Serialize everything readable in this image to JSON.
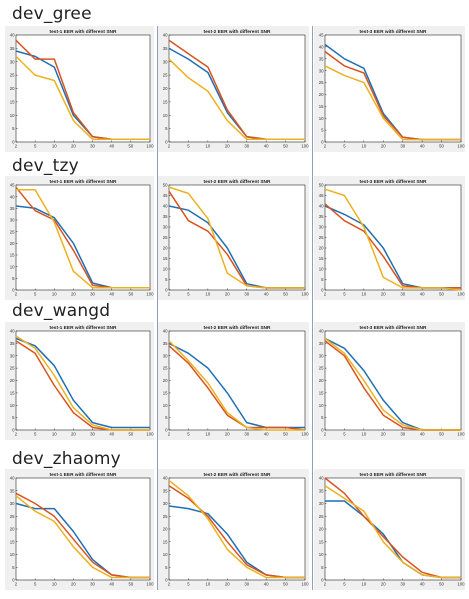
{
  "colors": {
    "series_blue": "#1f6fb5",
    "series_red": "#d9531e",
    "series_yellow": "#edb120",
    "panel_bg": "#f0f0f0",
    "divider": "#3b4f8a"
  },
  "sections": [
    {
      "title": "dev_gree"
    },
    {
      "title": "dev_tzy"
    },
    {
      "title": "dev_wangd"
    },
    {
      "title": "dev_zhaomy"
    }
  ],
  "chart_data": [
    {
      "type": "line",
      "section": "dev_gree",
      "title": "test-1 EER with different SNR",
      "categories": [
        "2",
        "5",
        "10",
        "20",
        "30",
        "40",
        "50",
        "100"
      ],
      "ylim": [
        0,
        40
      ],
      "yticks": [
        "0",
        "5",
        "10",
        "15",
        "20",
        "25",
        "30",
        "35",
        "40"
      ],
      "series": [
        {
          "color": "#1f6fb5",
          "values": [
            34,
            32,
            28,
            10,
            2,
            1,
            1,
            1
          ]
        },
        {
          "color": "#d9531e",
          "values": [
            38,
            31,
            31,
            11,
            2,
            1,
            1,
            1
          ]
        },
        {
          "color": "#edb120",
          "values": [
            32,
            25,
            23,
            8,
            1,
            1,
            1,
            1
          ]
        }
      ]
    },
    {
      "type": "line",
      "section": "dev_gree",
      "title": "test-2 EER with different SNR",
      "categories": [
        "2",
        "5",
        "10",
        "20",
        "30",
        "40",
        "50",
        "100"
      ],
      "ylim": [
        0,
        40
      ],
      "yticks": [
        "0",
        "5",
        "10",
        "15",
        "20",
        "25",
        "30",
        "35",
        "40"
      ],
      "series": [
        {
          "color": "#1f6fb5",
          "values": [
            35,
            31,
            26,
            11,
            2,
            1,
            1,
            1
          ]
        },
        {
          "color": "#d9531e",
          "values": [
            38,
            33,
            28,
            12,
            2,
            1,
            1,
            1
          ]
        },
        {
          "color": "#edb120",
          "values": [
            31,
            24,
            19,
            8,
            1,
            1,
            1,
            1
          ]
        }
      ]
    },
    {
      "type": "line",
      "section": "dev_gree",
      "title": "test-3 EER with different SNR",
      "categories": [
        "2",
        "5",
        "10",
        "20",
        "30",
        "40",
        "50",
        "100"
      ],
      "ylim": [
        0,
        45
      ],
      "yticks": [
        "0",
        "5",
        "10",
        "15",
        "20",
        "25",
        "30",
        "35",
        "40",
        "45"
      ],
      "series": [
        {
          "color": "#1f6fb5",
          "values": [
            41,
            35,
            31,
            12,
            2,
            1,
            1,
            1
          ]
        },
        {
          "color": "#d9531e",
          "values": [
            38,
            32,
            29,
            11,
            2,
            1,
            1,
            1
          ]
        },
        {
          "color": "#edb120",
          "values": [
            32,
            28,
            25,
            10,
            1,
            1,
            1,
            1
          ]
        }
      ]
    },
    {
      "type": "line",
      "section": "dev_tzy",
      "title": "test-1 EER with different SNR",
      "categories": [
        "2",
        "5",
        "10",
        "20",
        "30",
        "40",
        "50",
        "100"
      ],
      "ylim": [
        0,
        45
      ],
      "yticks": [
        "0",
        "5",
        "10",
        "15",
        "20",
        "25",
        "30",
        "35",
        "40",
        "45"
      ],
      "series": [
        {
          "color": "#1f6fb5",
          "values": [
            36,
            35,
            31,
            20,
            3,
            1,
            1,
            1
          ]
        },
        {
          "color": "#d9531e",
          "values": [
            44,
            34,
            30,
            17,
            2,
            1,
            1,
            1
          ]
        },
        {
          "color": "#edb120",
          "values": [
            43,
            43,
            29,
            8,
            1,
            1,
            1,
            1
          ]
        }
      ]
    },
    {
      "type": "line",
      "section": "dev_tzy",
      "title": "test-2 EER with different SNR",
      "categories": [
        "2",
        "5",
        "10",
        "20",
        "30",
        "40",
        "50",
        "100"
      ],
      "ylim": [
        0,
        50
      ],
      "yticks": [
        "0",
        "5",
        "10",
        "15",
        "20",
        "25",
        "30",
        "35",
        "40",
        "45",
        "50"
      ],
      "series": [
        {
          "color": "#1f6fb5",
          "values": [
            40,
            38,
            32,
            20,
            3,
            1,
            1,
            1
          ]
        },
        {
          "color": "#d9531e",
          "values": [
            47,
            33,
            28,
            17,
            2,
            1,
            1,
            1
          ]
        },
        {
          "color": "#edb120",
          "values": [
            49,
            46,
            34,
            8,
            2,
            1,
            1,
            1
          ]
        }
      ]
    },
    {
      "type": "line",
      "section": "dev_tzy",
      "title": "test-3 EER with different SNR",
      "categories": [
        "2",
        "5",
        "10",
        "20",
        "30",
        "40",
        "50",
        "100"
      ],
      "ylim": [
        0,
        50
      ],
      "yticks": [
        "0",
        "5",
        "10",
        "15",
        "20",
        "25",
        "30",
        "35",
        "40",
        "45",
        "50"
      ],
      "series": [
        {
          "color": "#1f6fb5",
          "values": [
            40,
            36,
            31,
            20,
            3,
            1,
            1,
            1
          ]
        },
        {
          "color": "#d9531e",
          "values": [
            41,
            33,
            28,
            16,
            2,
            1,
            1,
            1
          ]
        },
        {
          "color": "#edb120",
          "values": [
            48,
            45,
            30,
            6,
            1,
            1,
            1,
            0
          ]
        }
      ]
    },
    {
      "type": "line",
      "section": "dev_wangd",
      "title": "test-1 EER with different SNR",
      "categories": [
        "2",
        "5",
        "10",
        "20",
        "30",
        "40",
        "50",
        "100"
      ],
      "ylim": [
        0,
        40
      ],
      "yticks": [
        "0",
        "5",
        "10",
        "15",
        "20",
        "25",
        "30",
        "35",
        "40"
      ],
      "series": [
        {
          "color": "#1f6fb5",
          "values": [
            37,
            34,
            26,
            12,
            3,
            1,
            1,
            1
          ]
        },
        {
          "color": "#d9531e",
          "values": [
            36,
            31,
            18,
            7,
            1,
            0,
            0,
            0
          ]
        },
        {
          "color": "#edb120",
          "values": [
            38,
            33,
            22,
            9,
            2,
            0,
            0,
            0
          ]
        }
      ]
    },
    {
      "type": "line",
      "section": "dev_wangd",
      "title": "test-2 EER with different SNR",
      "categories": [
        "2",
        "5",
        "10",
        "20",
        "30",
        "40",
        "50",
        "100"
      ],
      "ylim": [
        0,
        40
      ],
      "yticks": [
        "0",
        "5",
        "10",
        "15",
        "20",
        "25",
        "30",
        "35",
        "40"
      ],
      "series": [
        {
          "color": "#1f6fb5",
          "values": [
            35,
            31,
            25,
            15,
            3,
            1,
            1,
            1
          ]
        },
        {
          "color": "#d9531e",
          "values": [
            34,
            27,
            17,
            6,
            1,
            1,
            1,
            0
          ]
        },
        {
          "color": "#edb120",
          "values": [
            36,
            28,
            19,
            7,
            1,
            0,
            0,
            0
          ]
        }
      ]
    },
    {
      "type": "line",
      "section": "dev_wangd",
      "title": "test-3 EER with different SNR",
      "categories": [
        "2",
        "5",
        "10",
        "20",
        "30",
        "40",
        "50",
        "100"
      ],
      "ylim": [
        0,
        40
      ],
      "yticks": [
        "0",
        "5",
        "10",
        "15",
        "20",
        "25",
        "30",
        "35",
        "40"
      ],
      "series": [
        {
          "color": "#1f6fb5",
          "values": [
            37,
            33,
            24,
            12,
            3,
            0,
            0,
            0
          ]
        },
        {
          "color": "#d9531e",
          "values": [
            36,
            30,
            17,
            6,
            1,
            0,
            0,
            0
          ]
        },
        {
          "color": "#edb120",
          "values": [
            37,
            31,
            20,
            8,
            2,
            0,
            0,
            0
          ]
        }
      ]
    },
    {
      "type": "line",
      "section": "dev_zhaomy",
      "title": "test-1 EER with different SNR",
      "categories": [
        "2",
        "5",
        "10",
        "20",
        "30",
        "40",
        "50",
        "100"
      ],
      "ylim": [
        0,
        40
      ],
      "yticks": [
        "0",
        "5",
        "10",
        "15",
        "20",
        "25",
        "30",
        "35",
        "40"
      ],
      "series": [
        {
          "color": "#1f6fb5",
          "values": [
            30,
            28,
            28,
            19,
            8,
            2,
            1,
            1
          ]
        },
        {
          "color": "#d9531e",
          "values": [
            34,
            30,
            25,
            16,
            7,
            2,
            1,
            1
          ]
        },
        {
          "color": "#edb120",
          "values": [
            33,
            27,
            23,
            13,
            5,
            1,
            1,
            1
          ]
        }
      ]
    },
    {
      "type": "line",
      "section": "dev_zhaomy",
      "title": "test-2 EER with different SNR",
      "categories": [
        "2",
        "5",
        "10",
        "20",
        "30",
        "40",
        "50",
        "100"
      ],
      "ylim": [
        0,
        40
      ],
      "yticks": [
        "0",
        "5",
        "10",
        "15",
        "20",
        "25",
        "30",
        "35",
        "40"
      ],
      "series": [
        {
          "color": "#1f6fb5",
          "values": [
            29,
            28,
            26,
            18,
            7,
            2,
            1,
            1
          ]
        },
        {
          "color": "#d9531e",
          "values": [
            37,
            32,
            25,
            15,
            6,
            2,
            1,
            1
          ]
        },
        {
          "color": "#edb120",
          "values": [
            39,
            33,
            24,
            12,
            5,
            1,
            1,
            1
          ]
        }
      ]
    },
    {
      "type": "line",
      "section": "dev_zhaomy",
      "title": "test-3 EER with different SNR",
      "categories": [
        "2",
        "5",
        "10",
        "20",
        "30",
        "40",
        "50",
        "100"
      ],
      "ylim": [
        0,
        40
      ],
      "yticks": [
        "0",
        "5",
        "10",
        "15",
        "20",
        "25",
        "30",
        "35",
        "40"
      ],
      "series": [
        {
          "color": "#1f6fb5",
          "values": [
            31,
            31,
            25,
            18,
            7,
            2,
            1,
            1
          ]
        },
        {
          "color": "#d9531e",
          "values": [
            40,
            34,
            25,
            17,
            9,
            3,
            1,
            1
          ]
        },
        {
          "color": "#edb120",
          "values": [
            37,
            32,
            27,
            15,
            7,
            2,
            1,
            1
          ]
        }
      ]
    }
  ]
}
